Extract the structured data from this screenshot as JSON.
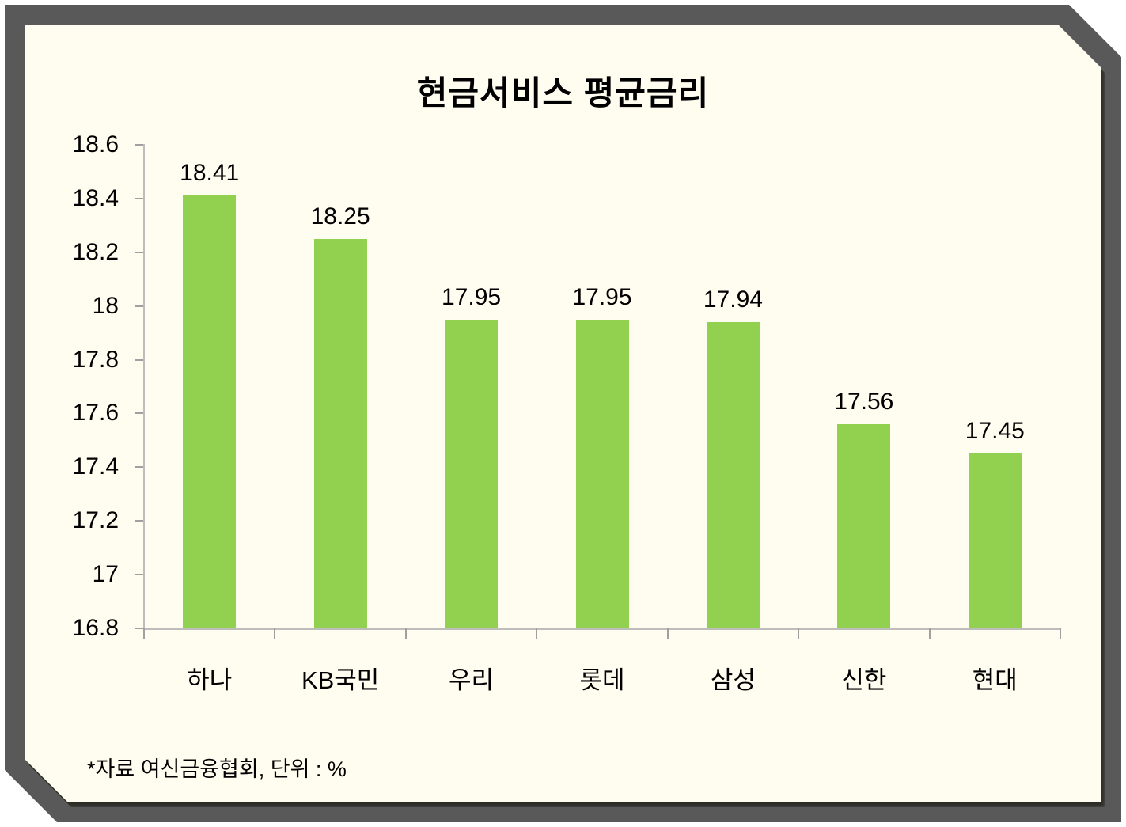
{
  "chart_data": {
    "type": "bar",
    "title": "현금서비스 평균금리",
    "categories": [
      "하나",
      "KB국민",
      "우리",
      "롯데",
      "삼성",
      "신한",
      "현대"
    ],
    "values": [
      18.41,
      18.25,
      17.95,
      17.95,
      17.94,
      17.56,
      17.45
    ],
    "value_labels": [
      "18.41",
      "18.25",
      "17.95",
      "17.95",
      "17.94",
      "17.56",
      "17.45"
    ],
    "ylim": [
      16.8,
      18.6
    ],
    "ytick_step": 0.2,
    "ytick_labels": [
      "16.8",
      "17",
      "17.2",
      "17.4",
      "17.6",
      "17.8",
      "18",
      "18.2",
      "18.4",
      "18.6"
    ],
    "xlabel": "",
    "ylabel": "",
    "grid": "off",
    "legend": "none",
    "footnote": "*자료 여신금융협회, 단위 : %"
  },
  "colors": {
    "bar_green": "#92D050",
    "panel_cream": "#FFFDF0",
    "frame_gray": "#595959",
    "axis_gray": "#BDBDBD",
    "tick_gray": "#A0A0A0",
    "text_black": "#000000"
  }
}
